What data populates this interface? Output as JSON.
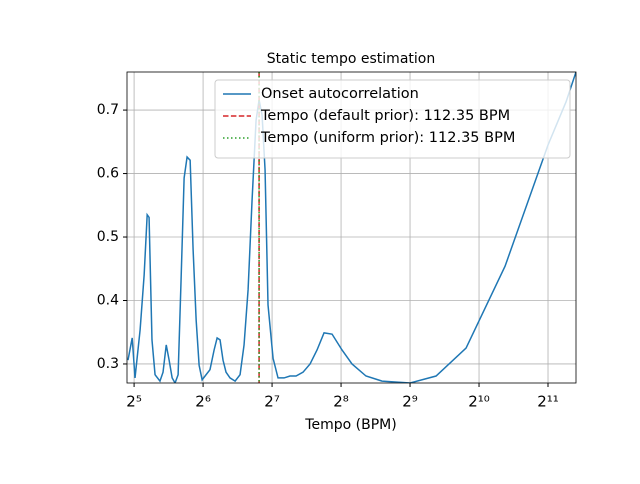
{
  "chart_data": {
    "type": "line",
    "title": "Static tempo estimation",
    "x_label": "Tempo (BPM)",
    "xscale": "log2",
    "grid": true,
    "legend": "upper right",
    "xlim": [
      29.8,
      2713
    ],
    "ylim": [
      0.27,
      0.76
    ],
    "xticks": [
      {
        "value": 32,
        "label": "2⁵"
      },
      {
        "value": 64,
        "label": "2⁶"
      },
      {
        "value": 128,
        "label": "2⁷"
      },
      {
        "value": 256,
        "label": "2⁸"
      },
      {
        "value": 512,
        "label": "2⁹"
      },
      {
        "value": 1024,
        "label": "2¹⁰"
      },
      {
        "value": 2048,
        "label": "2¹¹"
      }
    ],
    "yticks": [
      0.3,
      0.4,
      0.5,
      0.6,
      0.7
    ],
    "series": [
      {
        "name": "Onset autocorrelation",
        "color": "#1f77b4",
        "x": [
          30.1,
          31.4,
          32.3,
          34.0,
          35.4,
          36.5,
          37.2,
          38.3,
          39.5,
          41.5,
          42.8,
          44.2,
          45.5,
          46.9,
          48.3,
          49.8,
          51.3,
          52.9,
          54.5,
          56.2,
          57.9,
          59.7,
          61.5,
          63.4,
          65.3,
          68.6,
          71.5,
          73.7,
          75.9,
          78.2,
          80.6,
          83.9,
          88.3,
          92.8,
          96.6,
          100.6,
          104.7,
          109.0,
          112.35,
          115.8,
          119.3,
          122.9,
          129.3,
          135.9,
          144.4,
          153.3,
          162.9,
          174.7,
          187.5,
          201.1,
          215.8,
          233.9,
          258.5,
          285.8,
          328.9,
          386.3,
          512,
          665,
          899,
          1330,
          2048,
          2455,
          2713
        ],
        "values": [
          0.306,
          0.341,
          0.278,
          0.354,
          0.44,
          0.535,
          0.531,
          0.338,
          0.283,
          0.273,
          0.287,
          0.33,
          0.306,
          0.278,
          0.27,
          0.283,
          0.432,
          0.593,
          0.626,
          0.621,
          0.48,
          0.369,
          0.298,
          0.275,
          0.281,
          0.291,
          0.322,
          0.341,
          0.338,
          0.306,
          0.287,
          0.278,
          0.273,
          0.283,
          0.33,
          0.417,
          0.558,
          0.684,
          0.716,
          0.692,
          0.606,
          0.393,
          0.309,
          0.278,
          0.278,
          0.281,
          0.281,
          0.287,
          0.3,
          0.322,
          0.349,
          0.347,
          0.322,
          0.3,
          0.281,
          0.273,
          0.27,
          0.281,
          0.325,
          0.454,
          0.645,
          0.713,
          0.76
        ]
      }
    ],
    "vlines": [
      {
        "name": "Tempo (default prior): 112.35 BPM",
        "color": "#d62728",
        "style": "dashed",
        "x": 112.35
      },
      {
        "name": "Tempo (uniform prior): 112.35 BPM",
        "color": "#2ca02c",
        "style": "dotted",
        "x": 112.35
      }
    ]
  }
}
